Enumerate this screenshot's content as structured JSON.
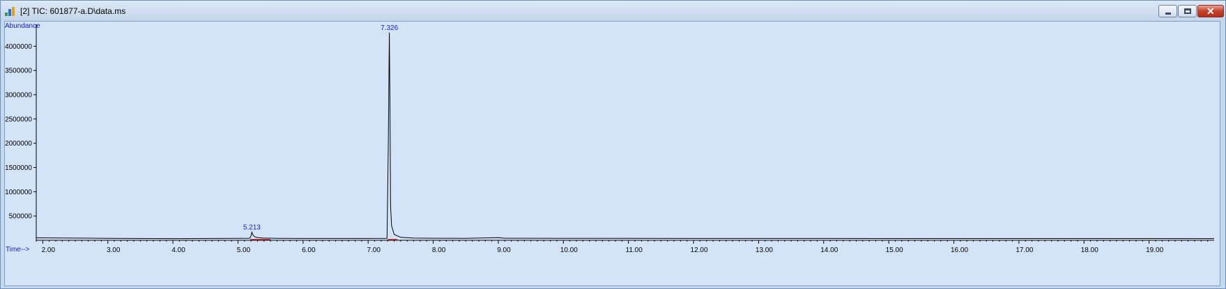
{
  "window": {
    "title": "[2] TIC: 601877-a.D\\data.ms",
    "icon": "chromatogram-app-icon",
    "controls": [
      "minimize-icon",
      "restore-icon",
      "close-icon"
    ],
    "close_glyph": "✕"
  },
  "colors": {
    "plot_bg": "#d3e3f8",
    "trace": "#000000",
    "label": "#1a1acc",
    "baseline_marker": "#cc0000"
  },
  "chart_data": {
    "type": "line",
    "title": "",
    "xlabel": "Time-->",
    "ylabel": "Abundance",
    "xlim": [
      1.9,
      20.0
    ],
    "ylim": [
      0,
      4450000
    ],
    "x_ticks": [
      2.0,
      3.0,
      4.0,
      5.0,
      6.0,
      7.0,
      8.0,
      9.0,
      10.0,
      11.0,
      12.0,
      13.0,
      14.0,
      15.0,
      16.0,
      17.0,
      18.0,
      19.0
    ],
    "x_tick_labels": [
      "2.00",
      "3.00",
      "4.00",
      "5.00",
      "6.00",
      "7.00",
      "8.00",
      "9.00",
      "10.00",
      "11.00",
      "12.00",
      "13.00",
      "14.00",
      "15.00",
      "16.00",
      "17.00",
      "18.00",
      "19.00"
    ],
    "y_ticks": [
      500000,
      1000000,
      1500000,
      2000000,
      2500000,
      3000000,
      3500000,
      4000000
    ],
    "y_tick_labels": [
      "500000",
      "1000000",
      "1500000",
      "2000000",
      "2500000",
      "3000000",
      "3500000",
      "4000000"
    ],
    "grid": false,
    "legend": "none",
    "series": [
      {
        "points": [
          [
            1.9,
            50000
          ],
          [
            2.5,
            45000
          ],
          [
            3.0,
            40000
          ],
          [
            4.0,
            35000
          ],
          [
            5.0,
            40000
          ],
          [
            5.18,
            42000
          ],
          [
            5.2,
            90000
          ],
          [
            5.213,
            165000
          ],
          [
            5.23,
            110000
          ],
          [
            5.26,
            70000
          ],
          [
            5.3,
            55000
          ],
          [
            5.4,
            45000
          ],
          [
            5.6,
            40000
          ],
          [
            6.0,
            38000
          ],
          [
            6.5,
            38000
          ],
          [
            7.0,
            38000
          ],
          [
            7.29,
            40000
          ],
          [
            7.31,
            1950000
          ],
          [
            7.326,
            4280000
          ],
          [
            7.335,
            2800000
          ],
          [
            7.345,
            700000
          ],
          [
            7.36,
            300000
          ],
          [
            7.4,
            120000
          ],
          [
            7.5,
            60000
          ],
          [
            7.7,
            45000
          ],
          [
            8.0,
            42000
          ],
          [
            8.5,
            40000
          ],
          [
            9.0,
            55000
          ],
          [
            9.1,
            42000
          ],
          [
            10.0,
            40000
          ],
          [
            12.0,
            38000
          ],
          [
            14.0,
            37000
          ],
          [
            16.0,
            36000
          ],
          [
            18.0,
            36000
          ],
          [
            20.0,
            35000
          ]
        ]
      }
    ],
    "peaks": [
      {
        "time": 5.213,
        "abundance": 165000,
        "label": "5.213"
      },
      {
        "time": 7.326,
        "abundance": 4280000,
        "label": "7.326"
      }
    ],
    "baseline_markers": [
      {
        "time_start": 5.19,
        "time_end": 5.5
      },
      {
        "time_start": 7.3,
        "time_end": 7.45
      }
    ]
  }
}
